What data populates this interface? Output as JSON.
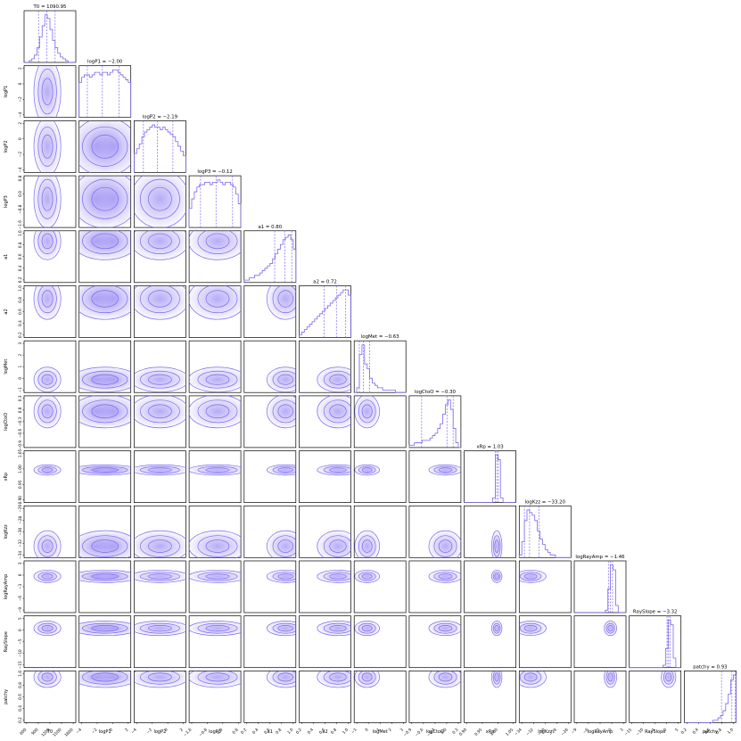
{
  "chart_data": {
    "type": "corner",
    "accent_color": "#7b68ee",
    "parameters": [
      {
        "label": "T0",
        "title": "T0 = 1090.95",
        "ticks": [
          "600",
          "900",
          "1200",
          "1500",
          "1800"
        ],
        "hist": [
          0,
          0,
          1,
          2,
          4,
          8,
          14,
          20,
          26,
          24,
          18,
          12,
          8,
          5,
          3,
          2,
          1,
          0,
          0,
          0
        ]
      },
      {
        "label": "logP1",
        "title": "logP1 = −2.00",
        "ticks": [
          "−4",
          "−2",
          "0",
          "2"
        ],
        "hist": [
          14,
          16,
          17,
          17,
          16,
          17,
          18,
          18,
          17,
          18,
          18,
          17,
          18,
          19,
          19,
          18,
          17,
          16,
          15,
          14
        ]
      },
      {
        "label": "logP2",
        "title": "logP2 = −2.19",
        "ticks": [
          "−4",
          "−2",
          "0",
          "2"
        ],
        "hist": [
          8,
          10,
          12,
          15,
          17,
          18,
          19,
          20,
          19,
          19,
          18,
          19,
          18,
          17,
          16,
          15,
          13,
          11,
          9,
          7
        ]
      },
      {
        "label": "logP3",
        "title": "logP3 = −0.12",
        "ticks": [
          "−1.6",
          "−0.8",
          "0.0",
          "0.8"
        ],
        "hist": [
          8,
          12,
          15,
          17,
          18,
          18,
          19,
          19,
          18,
          19,
          19,
          20,
          19,
          18,
          19,
          19,
          18,
          17,
          14,
          10
        ]
      },
      {
        "label": "a1",
        "title": "a1 = 0.80",
        "ticks": [
          "0.2",
          "0.4",
          "0.6",
          "0.8",
          "1.0"
        ],
        "hist": [
          1,
          1,
          2,
          2,
          3,
          3,
          4,
          5,
          6,
          7,
          8,
          10,
          12,
          14,
          16,
          18,
          19,
          20,
          18,
          14
        ]
      },
      {
        "label": "a2",
        "title": "a2 = 0.72",
        "ticks": [
          "0.2",
          "0.4",
          "0.6",
          "0.8",
          "1.0"
        ],
        "hist": [
          1,
          2,
          3,
          4,
          5,
          6,
          7,
          8,
          9,
          10,
          11,
          12,
          13,
          14,
          15,
          16,
          17,
          18,
          18,
          16
        ]
      },
      {
        "label": "logMet",
        "title": "logMet = −0.63",
        "ticks": [
          "−1",
          "0",
          "1",
          "2",
          "3"
        ],
        "hist": [
          0,
          2,
          16,
          20,
          12,
          10,
          6,
          4,
          3,
          2,
          2,
          1,
          1,
          1,
          1,
          1,
          0,
          0,
          0,
          0
        ]
      },
      {
        "label": "logCtoO",
        "title": "logCtoO = −0.30",
        "ticks": [
          "−0.9",
          "−0.6",
          "−0.3",
          "0.0",
          "0.3"
        ],
        "hist": [
          1,
          1,
          2,
          2,
          2,
          3,
          3,
          3,
          4,
          5,
          6,
          8,
          10,
          14,
          18,
          20,
          16,
          8,
          2,
          0
        ]
      },
      {
        "label": "xRp",
        "title": "xRp = 1.03",
        "ticks": [
          "0.90",
          "0.95",
          "1.00",
          "1.05"
        ],
        "hist": [
          0,
          0,
          0,
          0,
          0,
          0,
          0,
          0,
          0,
          0,
          0,
          2,
          20,
          18,
          2,
          0,
          0,
          0,
          0,
          0
        ]
      },
      {
        "label": "logKzz",
        "title": "logKzz = −33.20",
        "ticks": [
          "−34",
          "−32",
          "−30",
          "−28",
          "−26"
        ],
        "hist": [
          1,
          6,
          14,
          18,
          17,
          16,
          14,
          10,
          7,
          5,
          3,
          2,
          1,
          1,
          0,
          0,
          0,
          0,
          0,
          0
        ]
      },
      {
        "label": "logRayAmp",
        "title": "logRayAmp = −1.46",
        "ticks": [
          "−9",
          "−6",
          "−3",
          "0",
          "3"
        ],
        "hist": [
          0,
          0,
          0,
          0,
          0,
          0,
          0,
          0,
          0,
          0,
          0,
          0,
          1,
          10,
          20,
          18,
          3,
          0,
          0,
          0
        ]
      },
      {
        "label": "RaySlope",
        "title": "RaySlope = −3.32",
        "ticks": [
          "−15",
          "−10",
          "−5",
          "0",
          "5"
        ],
        "hist": [
          0,
          0,
          0,
          0,
          0,
          0,
          0,
          0,
          0,
          0,
          0,
          0,
          0,
          1,
          8,
          20,
          18,
          4,
          0,
          0
        ]
      },
      {
        "label": "patchy",
        "title": "patchy = 0.93",
        "ticks": [
          "0.2",
          "0.4",
          "0.6",
          "0.8",
          "1.0"
        ],
        "hist": [
          0,
          0,
          0,
          0,
          0,
          0,
          0,
          0,
          0,
          0,
          0,
          1,
          1,
          2,
          3,
          5,
          8,
          12,
          18,
          20
        ]
      }
    ],
    "quantile_markers": [
      [
        0.28,
        0.44,
        0.6
      ],
      [
        0.16,
        0.45,
        0.77
      ],
      [
        0.18,
        0.45,
        0.75
      ],
      [
        0.22,
        0.52,
        0.84
      ],
      [
        0.59,
        0.79,
        0.92
      ],
      [
        0.48,
        0.72,
        0.9
      ],
      [
        0.1,
        0.18,
        0.3
      ],
      [
        0.24,
        0.73,
        0.85
      ],
      [
        0.6,
        0.63,
        0.66
      ],
      [
        0.1,
        0.2,
        0.38
      ],
      [
        0.66,
        0.7,
        0.74
      ],
      [
        0.73,
        0.76,
        0.79
      ],
      [
        0.72,
        0.92,
        0.98
      ]
    ],
    "pair_density": {
      "T0": {
        "mu": 0.45,
        "sd": 0.13
      },
      "logP1": {
        "mu": 0.5,
        "sd": 0.32,
        "bimodal": true
      },
      "logP2": {
        "mu": 0.5,
        "sd": 0.28
      },
      "logP3": {
        "mu": 0.55,
        "sd": 0.28
      },
      "a1": {
        "mu": 0.8,
        "sd": 0.18
      },
      "a2": {
        "mu": 0.75,
        "sd": 0.2
      },
      "logMet": {
        "mu": 0.25,
        "sd": 0.12
      },
      "logCtoO": {
        "mu": 0.7,
        "sd": 0.16
      },
      "xRp": {
        "mu": 0.63,
        "sd": 0.05
      },
      "logKzz": {
        "mu": 0.22,
        "sd": 0.15
      },
      "logRayAmp": {
        "mu": 0.7,
        "sd": 0.06
      },
      "RaySlope": {
        "mu": 0.76,
        "sd": 0.07
      },
      "patchy": {
        "mu": 0.88,
        "sd": 0.1
      }
    }
  }
}
